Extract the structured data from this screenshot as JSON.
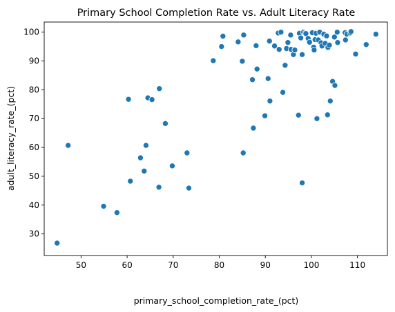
{
  "chart_data": {
    "type": "scatter",
    "title": "Primary School Completion Rate vs. Adult Literacy Rate",
    "xlabel": "primary_school_completion_rate_(pct)",
    "ylabel": "adult_literacy_rate_(pct)",
    "xlim": [
      42,
      116.5
    ],
    "ylim": [
      22.5,
      103.5
    ],
    "xticks": [
      50,
      60,
      70,
      80,
      90,
      100,
      110
    ],
    "yticks": [
      30,
      40,
      50,
      60,
      70,
      80,
      90,
      100
    ],
    "grid": false,
    "color": "#1f77b4",
    "points": [
      [
        44.8,
        26.8
      ],
      [
        47.2,
        60.7
      ],
      [
        54.9,
        39.6
      ],
      [
        57.8,
        37.4
      ],
      [
        60.3,
        76.7
      ],
      [
        60.7,
        48.3
      ],
      [
        62.9,
        56.4
      ],
      [
        63.7,
        51.8
      ],
      [
        64.1,
        60.7
      ],
      [
        64.5,
        77.2
      ],
      [
        65.4,
        76.6
      ],
      [
        66.9,
        46.2
      ],
      [
        67.0,
        80.4
      ],
      [
        68.3,
        68.3
      ],
      [
        69.8,
        53.6
      ],
      [
        73.0,
        58.1
      ],
      [
        73.4,
        45.9
      ],
      [
        78.7,
        90.1
      ],
      [
        80.5,
        95.0
      ],
      [
        80.8,
        98.6
      ],
      [
        84.1,
        96.6
      ],
      [
        85.0,
        89.9
      ],
      [
        85.2,
        58.1
      ],
      [
        85.3,
        99.0
      ],
      [
        87.2,
        83.5
      ],
      [
        87.4,
        66.7
      ],
      [
        88.0,
        95.3
      ],
      [
        88.2,
        87.2
      ],
      [
        89.9,
        71.0
      ],
      [
        90.6,
        83.9
      ],
      [
        91.0,
        76.1
      ],
      [
        90.9,
        96.9
      ],
      [
        92.0,
        95.2
      ],
      [
        92.8,
        99.7
      ],
      [
        93.0,
        94.0
      ],
      [
        93.4,
        100.0
      ],
      [
        93.8,
        79.1
      ],
      [
        94.3,
        88.5
      ],
      [
        94.6,
        94.3
      ],
      [
        94.9,
        96.4
      ],
      [
        95.5,
        99.0
      ],
      [
        95.6,
        94.0
      ],
      [
        96.1,
        92.2
      ],
      [
        96.4,
        93.8
      ],
      [
        97.2,
        71.2
      ],
      [
        97.4,
        99.6
      ],
      [
        97.7,
        98.0
      ],
      [
        98.0,
        92.2
      ],
      [
        98.0,
        47.7
      ],
      [
        98.3,
        100.0
      ],
      [
        98.6,
        99.6
      ],
      [
        98.8,
        99.5
      ],
      [
        99.3,
        97.8
      ],
      [
        99.6,
        96.5
      ],
      [
        100.2,
        99.8
      ],
      [
        100.5,
        94.8
      ],
      [
        100.6,
        93.8
      ],
      [
        100.8,
        97.4
      ],
      [
        101.0,
        99.6
      ],
      [
        101.2,
        70.0
      ],
      [
        101.5,
        97.3
      ],
      [
        101.8,
        100.0
      ],
      [
        102.1,
        96.3
      ],
      [
        102.3,
        95.2
      ],
      [
        102.7,
        99.3
      ],
      [
        103.0,
        96.1
      ],
      [
        103.3,
        98.7
      ],
      [
        103.5,
        71.3
      ],
      [
        103.6,
        94.7
      ],
      [
        103.9,
        95.5
      ],
      [
        104.1,
        76.1
      ],
      [
        104.6,
        82.9
      ],
      [
        105.0,
        98.3
      ],
      [
        105.1,
        81.5
      ],
      [
        105.6,
        100.0
      ],
      [
        105.7,
        96.4
      ],
      [
        107.3,
        99.8
      ],
      [
        107.4,
        97.3
      ],
      [
        107.7,
        99.3
      ],
      [
        108.4,
        99.7
      ],
      [
        108.6,
        100.2
      ],
      [
        109.6,
        92.4
      ],
      [
        111.9,
        95.7
      ],
      [
        114.0,
        99.3
      ]
    ]
  }
}
